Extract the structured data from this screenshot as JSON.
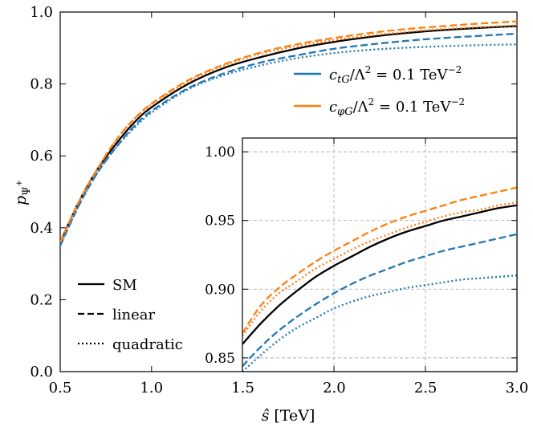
{
  "chart_data": [
    {
      "id": "main",
      "type": "line",
      "xlabel": "ŝ [TeV]",
      "ylabel": "p_Ψ+",
      "xlim": [
        0.5,
        3.0
      ],
      "ylim": [
        0.0,
        1.0
      ],
      "xticks": [
        "0.5",
        "1.0",
        "1.5",
        "2.0",
        "2.5",
        "3.0"
      ],
      "yticks": [
        "0.0",
        "0.2",
        "0.4",
        "0.6",
        "0.8",
        "1.0"
      ],
      "grid": false,
      "x": [
        0.5,
        0.6,
        0.7,
        0.8,
        0.9,
        1.0,
        1.2,
        1.4,
        1.6,
        1.8,
        2.0,
        2.2,
        2.4,
        2.6,
        2.8,
        3.0
      ],
      "series": [
        {
          "id": "sm",
          "color": "#000000",
          "dash": "solid",
          "values": [
            0.36,
            0.47,
            0.56,
            0.63,
            0.69,
            0.735,
            0.8,
            0.845,
            0.875,
            0.899,
            0.917,
            0.931,
            0.942,
            0.95,
            0.956,
            0.961
          ]
        },
        {
          "id": "ctg-linear",
          "color": "#1f77b4",
          "dash": "dashed",
          "values": [
            0.35,
            0.46,
            0.55,
            0.62,
            0.68,
            0.725,
            0.788,
            0.83,
            0.86,
            0.88,
            0.898,
            0.91,
            0.92,
            0.928,
            0.934,
            0.94
          ]
        },
        {
          "id": "ctg-quadratic",
          "color": "#1f77b4",
          "dash": "dotted",
          "values": [
            0.35,
            0.46,
            0.55,
            0.62,
            0.675,
            0.72,
            0.785,
            0.825,
            0.852,
            0.872,
            0.886,
            0.895,
            0.901,
            0.905,
            0.908,
            0.91
          ]
        },
        {
          "id": "cphig-linear",
          "color": "#ff7f0e",
          "dash": "dashed",
          "values": [
            0.36,
            0.47,
            0.56,
            0.64,
            0.7,
            0.745,
            0.81,
            0.855,
            0.888,
            0.911,
            0.928,
            0.942,
            0.953,
            0.961,
            0.968,
            0.974
          ]
        },
        {
          "id": "cphig-quadratic",
          "color": "#ff7f0e",
          "dash": "dotted",
          "values": [
            0.36,
            0.47,
            0.56,
            0.64,
            0.7,
            0.743,
            0.807,
            0.852,
            0.884,
            0.906,
            0.922,
            0.935,
            0.945,
            0.953,
            0.958,
            0.963
          ]
        }
      ]
    },
    {
      "id": "inset",
      "type": "line",
      "xlim": [
        1.5,
        3.0
      ],
      "ylim": [
        0.84,
        1.01
      ],
      "xticks": [
        1.5,
        2.0,
        2.5,
        3.0
      ],
      "yticks": [
        "0.85",
        "0.90",
        "0.95",
        "1.00"
      ],
      "grid": true,
      "x": [
        1.5,
        1.6,
        1.7,
        1.8,
        1.9,
        2.0,
        2.1,
        2.2,
        2.3,
        2.4,
        2.5,
        2.6,
        2.7,
        2.8,
        2.9,
        3.0
      ],
      "series": [
        {
          "id": "sm",
          "color": "#000000",
          "dash": "solid",
          "values": [
            0.86,
            0.875,
            0.888,
            0.899,
            0.909,
            0.917,
            0.924,
            0.931,
            0.937,
            0.942,
            0.946,
            0.95,
            0.953,
            0.956,
            0.959,
            0.961
          ]
        },
        {
          "id": "ctg-linear",
          "color": "#1f77b4",
          "dash": "dashed",
          "values": [
            0.844,
            0.858,
            0.87,
            0.88,
            0.889,
            0.897,
            0.904,
            0.91,
            0.915,
            0.92,
            0.924,
            0.928,
            0.931,
            0.934,
            0.937,
            0.94
          ]
        },
        {
          "id": "ctg-quadratic",
          "color": "#1f77b4",
          "dash": "dotted",
          "values": [
            0.84,
            0.852,
            0.863,
            0.872,
            0.879,
            0.886,
            0.891,
            0.895,
            0.898,
            0.901,
            0.903,
            0.905,
            0.907,
            0.908,
            0.909,
            0.91
          ]
        },
        {
          "id": "cphig-linear",
          "color": "#ff7f0e",
          "dash": "dashed",
          "values": [
            0.868,
            0.888,
            0.901,
            0.911,
            0.92,
            0.928,
            0.935,
            0.942,
            0.948,
            0.953,
            0.957,
            0.961,
            0.965,
            0.968,
            0.971,
            0.974
          ]
        },
        {
          "id": "cphig-quadratic",
          "color": "#ff7f0e",
          "dash": "dotted",
          "values": [
            0.866,
            0.884,
            0.897,
            0.906,
            0.915,
            0.922,
            0.929,
            0.935,
            0.94,
            0.945,
            0.949,
            0.953,
            0.956,
            0.958,
            0.961,
            0.963
          ]
        }
      ]
    }
  ],
  "legend_linestyle": [
    {
      "label": "SM",
      "dash": "solid"
    },
    {
      "label": "linear",
      "dash": "dashed"
    },
    {
      "label": "quadratic",
      "dash": "dotted"
    }
  ],
  "legend_color": [
    {
      "coef": "c",
      "sub": "tG",
      "rest": "/Λ",
      "rest_sup": "2",
      "eq": " = 0.1 TeV",
      "eq_sup": "−2",
      "color": "#1f77b4"
    },
    {
      "coef": "c",
      "sub": "φG",
      "rest": "/Λ",
      "rest_sup": "2",
      "eq": " = 0.1 TeV",
      "eq_sup": "−2",
      "color": "#ff7f0e"
    }
  ],
  "labels": {
    "xlabel_hat": "ŝ",
    "xlabel_unit": " [TeV]",
    "ylabel_main": "p",
    "ylabel_sub": "Ψ",
    "ylabel_sup": "+"
  }
}
